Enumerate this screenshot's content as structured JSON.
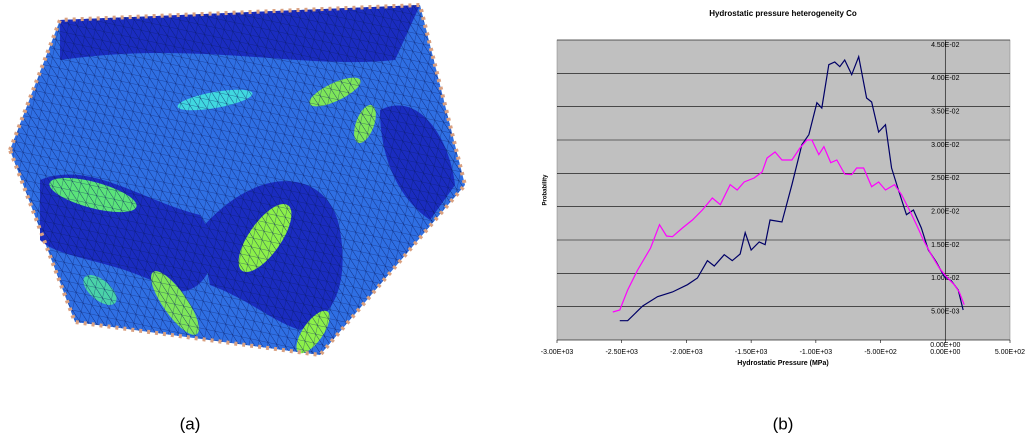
{
  "captions": [
    "(a)",
    "(b)"
  ],
  "chart_data": {
    "type": "line",
    "title": "Hydrostatic pressure heterogeneity Co",
    "x_label": "Hydrostatic Pressure (MPa)",
    "y_label": "Probability",
    "xlim": [
      -3000,
      500
    ],
    "xticks": [
      {
        "value": -3000,
        "label": "-3.00E+03"
      },
      {
        "value": -2500,
        "label": "-2.50E+03"
      },
      {
        "value": -2000,
        "label": "-2.00E+03"
      },
      {
        "value": -1500,
        "label": "-1.50E+03"
      },
      {
        "value": -1000,
        "label": "-1.00E+03"
      },
      {
        "value": -500,
        "label": "-5.00E+02"
      },
      {
        "value": 0,
        "label": "0.00E+00"
      },
      {
        "value": 500,
        "label": "5.00E+02"
      }
    ],
    "ylim": [
      0,
      0.045
    ],
    "yticks": [
      {
        "value": 0,
        "label": "0.00E+00"
      },
      {
        "value": 0.005,
        "label": "5.00E-03"
      },
      {
        "value": 0.01,
        "label": "1.00E-02"
      },
      {
        "value": 0.015,
        "label": "1.50E-02"
      },
      {
        "value": 0.02,
        "label": "2.00E-02"
      },
      {
        "value": 0.025,
        "label": "2.50E-02"
      },
      {
        "value": 0.03,
        "label": "3.00E-02"
      },
      {
        "value": 0.035,
        "label": "3.50E-02"
      },
      {
        "value": 0.04,
        "label": "4.00E-02"
      },
      {
        "value": 0.045,
        "label": "4.50E-02"
      }
    ],
    "grid": true,
    "series": [
      {
        "color": "#000066",
        "x": [
          -2515,
          -2454,
          -2338,
          -2223,
          -2108,
          -1992,
          -1915,
          -1838,
          -1785,
          -1708,
          -1646,
          -1585,
          -1546,
          -1500,
          -1438,
          -1392,
          -1354,
          -1262,
          -1185,
          -1108,
          -1054,
          -992,
          -954,
          -900,
          -854,
          -815,
          -777,
          -723,
          -669,
          -608,
          -569,
          -515,
          -462,
          -415,
          -362,
          -300,
          -246,
          -185,
          -131,
          -69,
          -8,
          46,
          100,
          138
        ],
        "values": [
          0.0029,
          0.0029,
          0.0051,
          0.0065,
          0.0072,
          0.0083,
          0.0093,
          0.0119,
          0.0111,
          0.0128,
          0.0119,
          0.0129,
          0.0161,
          0.0135,
          0.0147,
          0.0143,
          0.018,
          0.0177,
          0.0233,
          0.0293,
          0.0308,
          0.0356,
          0.0348,
          0.0413,
          0.0417,
          0.041,
          0.042,
          0.0398,
          0.0425,
          0.0363,
          0.0357,
          0.0312,
          0.0323,
          0.0258,
          0.0225,
          0.0188,
          0.0195,
          0.0168,
          0.0135,
          0.0117,
          0.0095,
          0.0089,
          0.0075,
          0.0045
        ]
      },
      {
        "color": "#ff00ff",
        "x": [
          -2569,
          -2515,
          -2454,
          -2377,
          -2277,
          -2208,
          -2154,
          -2108,
          -2031,
          -1954,
          -1877,
          -1800,
          -1738,
          -1662,
          -1608,
          -1554,
          -1477,
          -1415,
          -1377,
          -1315,
          -1262,
          -1185,
          -1123,
          -1069,
          -1031,
          -977,
          -938,
          -885,
          -838,
          -777,
          -723,
          -685,
          -631,
          -569,
          -515,
          -462,
          -392,
          -338,
          -277,
          -223,
          -169,
          -108,
          -46,
          8,
          69,
          108,
          146
        ],
        "values": [
          0.0042,
          0.0045,
          0.0075,
          0.0105,
          0.0138,
          0.0173,
          0.0156,
          0.0155,
          0.0168,
          0.018,
          0.0195,
          0.0213,
          0.0203,
          0.0233,
          0.0225,
          0.0237,
          0.0243,
          0.0252,
          0.0273,
          0.0282,
          0.027,
          0.027,
          0.0288,
          0.03,
          0.03,
          0.0278,
          0.029,
          0.0266,
          0.027,
          0.0249,
          0.0248,
          0.0258,
          0.0258,
          0.023,
          0.0237,
          0.0225,
          0.0233,
          0.0218,
          0.0195,
          0.0173,
          0.015,
          0.0128,
          0.0108,
          0.0095,
          0.0083,
          0.0072,
          0.0053
        ]
      }
    ]
  }
}
